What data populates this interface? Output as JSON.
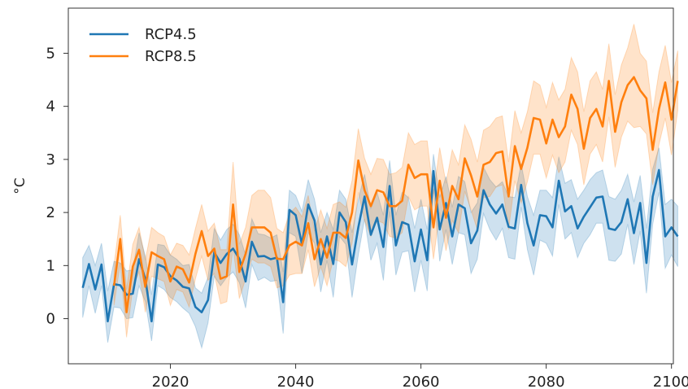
{
  "chart_data": {
    "type": "line",
    "title": "",
    "xlabel": "",
    "ylabel": "°C",
    "xlim": [
      2003.7,
      2100.3
    ],
    "ylim": [
      -0.85,
      5.85
    ],
    "xticks": [
      2020,
      2040,
      2060,
      2080,
      2100
    ],
    "yticks": [
      0,
      1,
      2,
      3,
      4,
      5
    ],
    "grid": false,
    "legend": "top-left",
    "series": [
      {
        "name": "RCP4.5",
        "color": "#1f77b4",
        "x_start": 2006,
        "values": [
          0.58,
          1.03,
          0.55,
          1.02,
          -0.05,
          0.65,
          0.63,
          0.45,
          0.47,
          1.12,
          0.75,
          -0.05,
          1.02,
          0.97,
          0.8,
          0.72,
          0.6,
          0.57,
          0.22,
          0.12,
          0.35,
          1.25,
          1.05,
          1.22,
          1.32,
          1.13,
          0.7,
          1.45,
          1.17,
          1.18,
          1.12,
          1.15,
          0.31,
          2.05,
          1.95,
          1.4,
          2.15,
          1.85,
          1.02,
          1.55,
          1.03,
          2.0,
          1.82,
          1.02,
          1.72,
          2.3,
          1.58,
          1.9,
          1.35,
          2.5,
          1.38,
          1.82,
          1.77,
          1.08,
          1.68,
          1.1,
          2.78,
          1.68,
          2.18,
          1.55,
          2.15,
          2.08,
          1.42,
          1.66,
          2.42,
          2.15,
          1.98,
          2.15,
          1.73,
          1.7,
          2.52,
          1.8,
          1.38,
          1.95,
          1.93,
          1.72,
          2.6,
          2.02,
          2.12,
          1.7,
          1.92,
          2.1,
          2.28,
          2.3,
          1.7,
          1.67,
          1.82,
          2.25,
          1.61,
          2.18,
          1.05,
          2.3,
          2.8,
          1.55,
          1.72,
          1.55
        ],
        "band_upper": [
          1.15,
          1.38,
          1.0,
          1.42,
          0.52,
          1.08,
          1.05,
          0.9,
          0.92,
          1.62,
          1.18,
          0.45,
          1.4,
          1.38,
          1.2,
          1.12,
          1.0,
          1.02,
          0.58,
          0.48,
          0.78,
          1.7,
          1.48,
          1.68,
          1.78,
          1.58,
          1.2,
          1.88,
          1.6,
          1.58,
          1.52,
          1.58,
          0.88,
          2.42,
          2.32,
          2.02,
          2.62,
          2.25,
          1.62,
          2.0,
          1.68,
          2.42,
          2.25,
          1.62,
          2.25,
          2.72,
          2.08,
          2.38,
          1.95,
          2.98,
          1.95,
          2.38,
          2.28,
          1.7,
          2.25,
          1.68,
          3.1,
          2.28,
          2.68,
          2.1,
          2.68,
          2.58,
          2.0,
          2.18,
          2.85,
          2.62,
          2.48,
          2.58,
          2.3,
          2.28,
          2.92,
          2.3,
          1.95,
          2.42,
          2.42,
          2.28,
          3.05,
          2.55,
          2.62,
          2.25,
          2.42,
          2.62,
          2.75,
          2.8,
          2.3,
          2.25,
          2.42,
          2.72,
          2.2,
          2.7,
          1.7,
          2.82,
          3.22,
          2.15,
          2.25,
          2.12
        ],
        "band_lower": [
          0.02,
          0.62,
          0.1,
          0.62,
          -0.45,
          0.22,
          0.2,
          0.0,
          0.02,
          0.62,
          0.32,
          -0.42,
          0.62,
          0.55,
          0.4,
          0.32,
          0.2,
          0.1,
          -0.15,
          -0.55,
          -0.08,
          0.8,
          0.62,
          0.78,
          0.88,
          0.68,
          0.2,
          1.02,
          0.72,
          0.78,
          0.7,
          0.72,
          -0.28,
          1.62,
          1.55,
          0.85,
          1.62,
          1.42,
          0.5,
          1.1,
          0.4,
          1.55,
          1.4,
          0.4,
          1.2,
          1.88,
          1.1,
          1.42,
          0.72,
          2.02,
          0.82,
          1.25,
          1.28,
          0.5,
          1.1,
          0.52,
          2.45,
          1.08,
          1.68,
          1.02,
          1.62,
          1.58,
          0.85,
          1.12,
          1.98,
          1.68,
          1.48,
          1.7,
          1.15,
          1.12,
          2.1,
          1.3,
          0.82,
          1.48,
          1.42,
          1.18,
          2.15,
          1.5,
          1.62,
          1.15,
          1.42,
          1.58,
          1.8,
          1.8,
          1.1,
          1.08,
          1.22,
          1.78,
          1.02,
          1.65,
          0.48,
          1.78,
          2.38,
          0.95,
          1.2,
          0.98
        ]
      },
      {
        "name": "RCP8.5",
        "color": "#ff7f0e",
        "x_start": 2011,
        "values": [
          0.62,
          1.5,
          0.12,
          0.98,
          1.3,
          0.6,
          1.25,
          1.18,
          1.12,
          0.7,
          0.98,
          0.93,
          0.68,
          1.22,
          1.65,
          1.18,
          1.32,
          0.75,
          0.8,
          2.15,
          0.88,
          1.22,
          1.72,
          1.72,
          1.72,
          1.62,
          1.13,
          1.12,
          1.38,
          1.45,
          1.38,
          1.8,
          1.12,
          1.5,
          1.15,
          1.62,
          1.62,
          1.52,
          2.0,
          2.98,
          2.42,
          2.12,
          2.42,
          2.38,
          2.12,
          2.12,
          2.22,
          2.9,
          2.65,
          2.72,
          2.72,
          1.72,
          2.6,
          1.9,
          2.5,
          2.25,
          3.02,
          2.7,
          2.3,
          2.9,
          2.95,
          3.12,
          3.15,
          2.3,
          3.25,
          2.82,
          3.22,
          3.78,
          3.75,
          3.3,
          3.75,
          3.42,
          3.62,
          4.22,
          3.95,
          3.2,
          3.78,
          3.95,
          3.62,
          4.48,
          3.52,
          4.08,
          4.4,
          4.55,
          4.3,
          4.15,
          3.18,
          3.95,
          4.45,
          3.75,
          4.48
        ],
        "band_upper": [
          1.0,
          1.95,
          0.55,
          1.4,
          1.72,
          1.1,
          1.72,
          1.62,
          1.55,
          1.2,
          1.42,
          1.38,
          1.2,
          1.7,
          2.15,
          1.65,
          1.8,
          1.3,
          1.3,
          2.95,
          1.4,
          1.72,
          2.32,
          2.42,
          2.42,
          2.28,
          1.7,
          1.62,
          1.98,
          2.1,
          1.92,
          2.32,
          1.65,
          2.05,
          1.7,
          2.15,
          2.2,
          2.1,
          2.6,
          3.58,
          3.02,
          2.72,
          3.02,
          3.0,
          2.72,
          2.75,
          2.85,
          3.5,
          3.28,
          3.35,
          3.35,
          2.35,
          3.22,
          2.55,
          3.18,
          2.9,
          3.65,
          3.38,
          2.95,
          3.55,
          3.62,
          3.78,
          3.82,
          2.95,
          3.92,
          3.5,
          3.9,
          4.48,
          4.4,
          3.98,
          4.45,
          4.12,
          4.32,
          4.92,
          4.65,
          3.9,
          4.48,
          4.65,
          4.32,
          5.18,
          4.22,
          4.78,
          5.1,
          5.55,
          5.0,
          4.85,
          3.88,
          4.65,
          5.15,
          4.45,
          5.05
        ],
        "band_lower": [
          0.25,
          1.05,
          -0.35,
          0.58,
          0.88,
          0.12,
          0.8,
          0.75,
          0.7,
          0.25,
          0.55,
          0.5,
          0.22,
          0.75,
          1.18,
          0.72,
          0.85,
          0.28,
          0.32,
          1.35,
          0.38,
          0.75,
          1.12,
          1.05,
          1.05,
          0.98,
          0.58,
          0.62,
          0.82,
          0.85,
          0.85,
          1.3,
          0.6,
          0.98,
          0.62,
          1.12,
          1.08,
          0.98,
          1.42,
          2.38,
          1.85,
          1.55,
          1.85,
          1.8,
          1.55,
          1.52,
          1.62,
          2.3,
          2.05,
          2.12,
          2.12,
          1.12,
          2.0,
          1.28,
          1.85,
          1.62,
          2.4,
          2.05,
          1.68,
          2.28,
          2.3,
          2.48,
          2.52,
          1.68,
          2.6,
          2.18,
          2.58,
          3.1,
          3.1,
          2.65,
          3.08,
          2.75,
          2.95,
          3.55,
          3.28,
          2.52,
          3.1,
          3.28,
          2.95,
          3.8,
          2.85,
          3.42,
          3.72,
          3.6,
          3.62,
          3.48,
          2.52,
          3.28,
          3.78,
          3.08,
          3.92
        ]
      }
    ]
  }
}
